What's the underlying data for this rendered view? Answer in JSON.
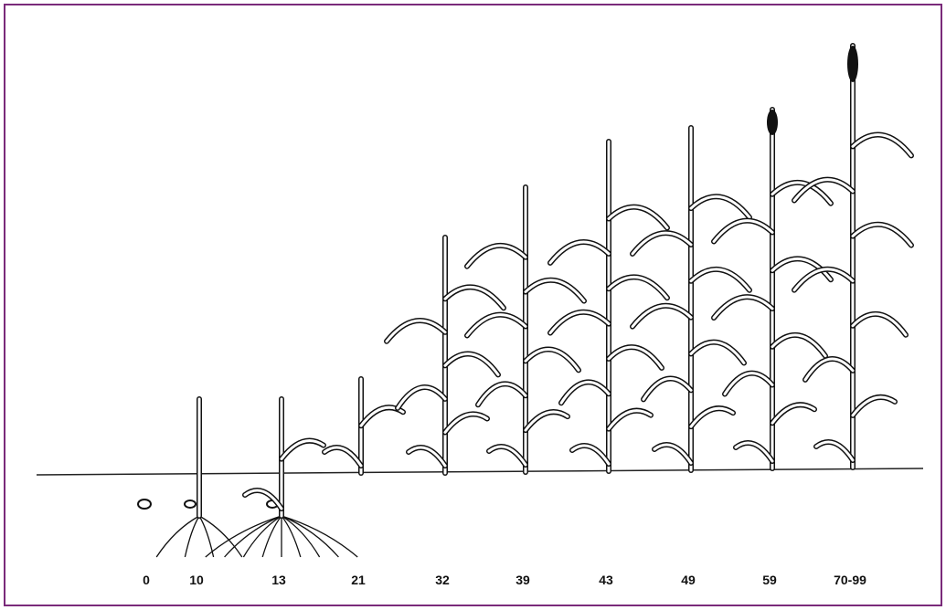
{
  "stages": [
    "0",
    "10",
    "13",
    "21",
    "32",
    "39",
    "43",
    "49",
    "59",
    "70-99"
  ]
}
